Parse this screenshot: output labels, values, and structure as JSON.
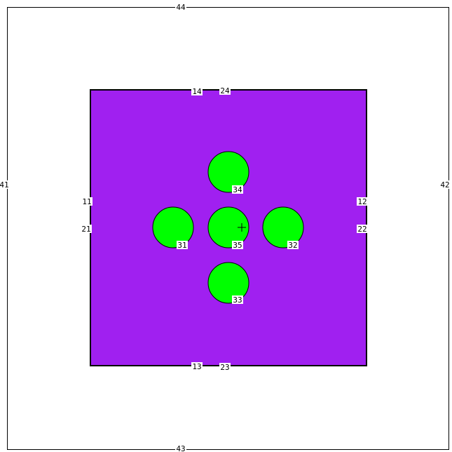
{
  "colors": {
    "background": "#ffffff",
    "outer_border": "#000000",
    "square_fill": "#a020f0",
    "square_stroke": "#000000",
    "circle_fill": "#00ff00",
    "circle_stroke": "#000000",
    "label_text": "#000000",
    "label_background": "#ffffff"
  },
  "outer_boundary_labels": {
    "top": "44",
    "right": "42",
    "bottom": "43",
    "left": "41"
  },
  "square_labels": {
    "top_a": "14",
    "top_b": "24",
    "right_a": "12",
    "right_b": "22",
    "bottom_a": "13",
    "bottom_b": "23",
    "left_a": "11",
    "left_b": "21"
  },
  "circle_labels": {
    "top": "34",
    "left": "31",
    "center": "35",
    "right": "32",
    "bottom": "33"
  },
  "center_marker_icon": "crosshair-icon"
}
